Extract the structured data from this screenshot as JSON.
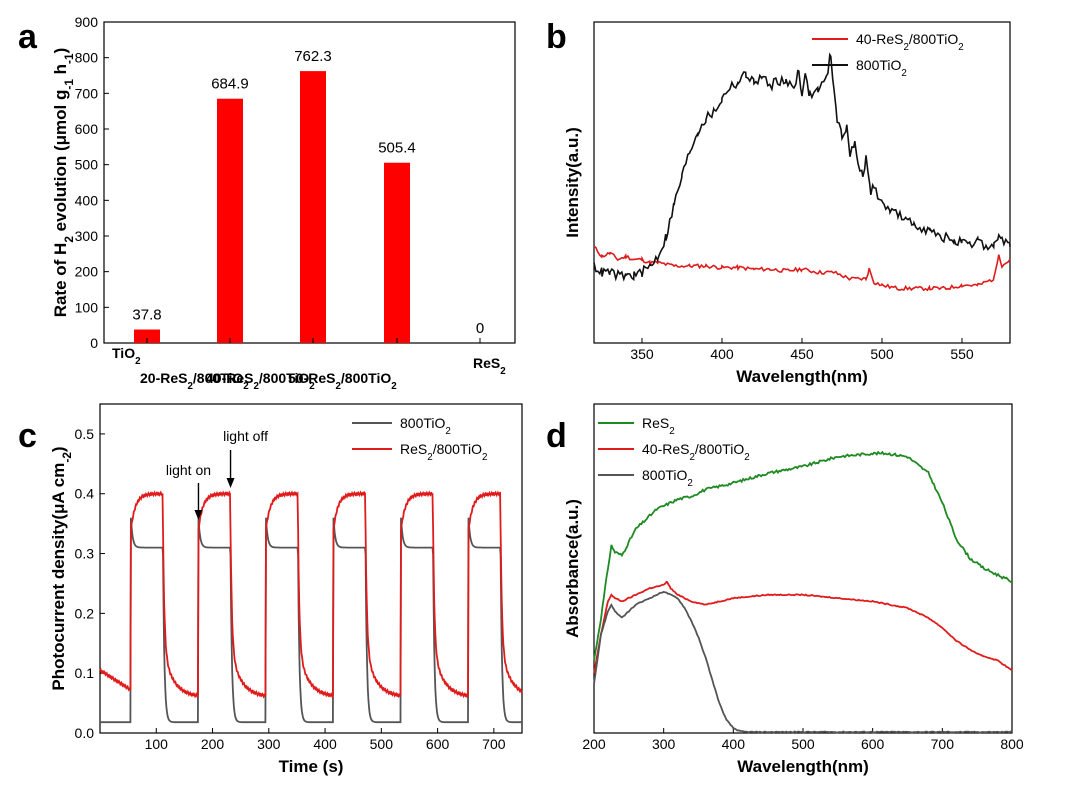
{
  "chart_data": [
    {
      "panel": "a",
      "type": "bar",
      "ylabel_parts": [
        "Rate of H",
        "2",
        " evolution (μmol g",
        "-1",
        " h",
        "-1",
        ")"
      ],
      "ylim": [
        0,
        900
      ],
      "yticks": [
        0,
        100,
        200,
        300,
        400,
        500,
        600,
        700,
        800,
        900
      ],
      "categories": [
        [
          [
            "TiO",
            ""
          ],
          [
            "2",
            "s"
          ]
        ],
        [
          [
            "20-ReS",
            ""
          ],
          [
            "2",
            "s"
          ],
          [
            "/800TiO",
            ""
          ],
          [
            "2",
            "s"
          ]
        ],
        [
          [
            "40-ReS",
            ""
          ],
          [
            "2",
            "s"
          ],
          [
            "/800TiO",
            ""
          ],
          [
            "2",
            "s"
          ]
        ],
        [
          [
            "50-ReS",
            ""
          ],
          [
            "2",
            "s"
          ],
          [
            "/800TiO",
            ""
          ],
          [
            "2",
            "s"
          ]
        ],
        [
          [
            "ReS",
            ""
          ],
          [
            "2",
            "s"
          ]
        ]
      ],
      "values": [
        37.8,
        684.9,
        762.3,
        505.4,
        0
      ],
      "value_labels": [
        "37.8",
        "684.9",
        "762.3",
        "505.4",
        "0"
      ],
      "color": "#ff0000"
    },
    {
      "panel": "b",
      "type": "line",
      "xlabel": "Wavelength(nm)",
      "ylabel": "Intensity(a.u.)",
      "xlim": [
        320,
        580
      ],
      "ylim": [
        0,
        1
      ],
      "xticks": [
        350,
        400,
        450,
        500,
        550
      ],
      "series": [
        {
          "name_parts": [
            "40-ReS",
            "2",
            "/800TiO",
            "2"
          ],
          "color": "#e01b1b",
          "x": [
            320,
            325,
            330,
            335,
            340,
            345,
            350,
            355,
            360,
            370,
            380,
            390,
            400,
            410,
            420,
            430,
            440,
            450,
            460,
            470,
            480,
            490,
            492,
            495,
            500,
            510,
            520,
            530,
            540,
            550,
            560,
            570,
            573,
            575,
            580
          ],
          "y": [
            0.3,
            0.27,
            0.28,
            0.26,
            0.27,
            0.26,
            0.26,
            0.25,
            0.25,
            0.24,
            0.24,
            0.24,
            0.235,
            0.235,
            0.23,
            0.23,
            0.225,
            0.23,
            0.22,
            0.22,
            0.2,
            0.2,
            0.23,
            0.19,
            0.18,
            0.17,
            0.17,
            0.17,
            0.17,
            0.18,
            0.18,
            0.2,
            0.28,
            0.24,
            0.26
          ]
        },
        {
          "name_parts": [
            "800TiO",
            "2"
          ],
          "color": "#111111",
          "x": [
            320,
            325,
            330,
            335,
            340,
            345,
            350,
            355,
            360,
            365,
            370,
            375,
            380,
            385,
            390,
            395,
            400,
            405,
            410,
            415,
            420,
            425,
            430,
            435,
            440,
            445,
            448,
            450,
            452,
            455,
            460,
            465,
            468,
            470,
            472,
            475,
            478,
            480,
            483,
            485,
            488,
            490,
            493,
            495,
            500,
            505,
            510,
            515,
            520,
            525,
            530,
            535,
            540,
            545,
            550,
            555,
            560,
            565,
            570,
            573,
            575,
            580
          ],
          "y": [
            0.24,
            0.22,
            0.22,
            0.21,
            0.21,
            0.21,
            0.22,
            0.24,
            0.27,
            0.33,
            0.43,
            0.52,
            0.6,
            0.66,
            0.7,
            0.72,
            0.76,
            0.8,
            0.81,
            0.84,
            0.81,
            0.83,
            0.8,
            0.82,
            0.81,
            0.8,
            0.85,
            0.78,
            0.83,
            0.77,
            0.79,
            0.82,
            0.9,
            0.79,
            0.7,
            0.64,
            0.68,
            0.59,
            0.62,
            0.55,
            0.53,
            0.57,
            0.47,
            0.49,
            0.43,
            0.42,
            0.4,
            0.38,
            0.37,
            0.36,
            0.35,
            0.33,
            0.33,
            0.32,
            0.31,
            0.3,
            0.32,
            0.3,
            0.3,
            0.34,
            0.32,
            0.3
          ]
        }
      ]
    },
    {
      "panel": "c",
      "type": "line",
      "xlabel": "Time (s)",
      "ylabel_parts": [
        "Photocurrent density(μA cm",
        "-2",
        ")"
      ],
      "xlim": [
        0,
        750
      ],
      "ylim": [
        0,
        0.55
      ],
      "xticks": [
        100,
        200,
        300,
        400,
        500,
        600,
        700
      ],
      "yticks": [
        0.0,
        0.1,
        0.2,
        0.3,
        0.4,
        0.5
      ],
      "on_times": [
        55,
        175,
        295,
        415,
        535,
        655
      ],
      "off_times": [
        112,
        232,
        352,
        472,
        592,
        712
      ],
      "annotations": [
        {
          "text": "light on",
          "x": 175
        },
        {
          "text": "light off",
          "x": 232
        }
      ],
      "series": [
        {
          "name_parts": [
            "800TiO",
            "2"
          ],
          "color": "#555555",
          "dark": 0.018,
          "light": 0.31,
          "spike": 0.36
        },
        {
          "name_parts": [
            "ReS",
            "2",
            "/800TiO",
            "2"
          ],
          "color": "#e01b1b",
          "dark": 0.06,
          "dark_start": 0.105,
          "light": 0.4,
          "rise": 0.34
        }
      ]
    },
    {
      "panel": "d",
      "type": "line",
      "xlabel": "Wavelength(nm)",
      "ylabel": "Absorbance(a.u.)",
      "xlim": [
        200,
        800
      ],
      "ylim": [
        0,
        1
      ],
      "xticks": [
        200,
        300,
        400,
        500,
        600,
        700,
        800
      ],
      "series": [
        {
          "name_parts": [
            "ReS",
            "2"
          ],
          "color": "#1f8a22",
          "x": [
            200,
            210,
            220,
            225,
            230,
            240,
            250,
            260,
            270,
            280,
            290,
            300,
            320,
            340,
            360,
            380,
            400,
            450,
            500,
            550,
            600,
            620,
            650,
            680,
            700,
            720,
            740,
            760,
            780,
            800
          ],
          "y": [
            0.22,
            0.35,
            0.5,
            0.57,
            0.55,
            0.54,
            0.58,
            0.62,
            0.64,
            0.66,
            0.68,
            0.69,
            0.71,
            0.72,
            0.74,
            0.75,
            0.76,
            0.79,
            0.81,
            0.84,
            0.85,
            0.85,
            0.84,
            0.79,
            0.7,
            0.59,
            0.53,
            0.5,
            0.48,
            0.46
          ]
        },
        {
          "name_parts": [
            "40-ReS",
            "2",
            "/800TiO",
            "2"
          ],
          "color": "#e01b1b",
          "x": [
            200,
            210,
            220,
            225,
            230,
            240,
            250,
            260,
            280,
            300,
            305,
            310,
            320,
            340,
            360,
            380,
            400,
            450,
            500,
            550,
            600,
            650,
            680,
            700,
            720,
            750,
            780,
            800
          ],
          "y": [
            0.18,
            0.3,
            0.4,
            0.42,
            0.41,
            0.4,
            0.41,
            0.42,
            0.44,
            0.45,
            0.46,
            0.44,
            0.42,
            0.4,
            0.39,
            0.4,
            0.41,
            0.42,
            0.42,
            0.41,
            0.4,
            0.38,
            0.35,
            0.32,
            0.28,
            0.24,
            0.22,
            0.19
          ]
        },
        {
          "name_parts": [
            "800TiO",
            "2"
          ],
          "color": "#555555",
          "x": [
            200,
            210,
            220,
            225,
            230,
            240,
            250,
            260,
            280,
            300,
            310,
            320,
            330,
            340,
            350,
            360,
            370,
            380,
            390,
            400,
            410,
            420,
            450,
            500,
            600,
            700,
            800
          ],
          "y": [
            0.15,
            0.3,
            0.37,
            0.39,
            0.37,
            0.35,
            0.37,
            0.39,
            0.41,
            0.43,
            0.42,
            0.41,
            0.38,
            0.34,
            0.29,
            0.23,
            0.16,
            0.09,
            0.04,
            0.015,
            0.005,
            0.003,
            0.003,
            0.003,
            0.003,
            0.003,
            0.003
          ]
        }
      ]
    }
  ]
}
